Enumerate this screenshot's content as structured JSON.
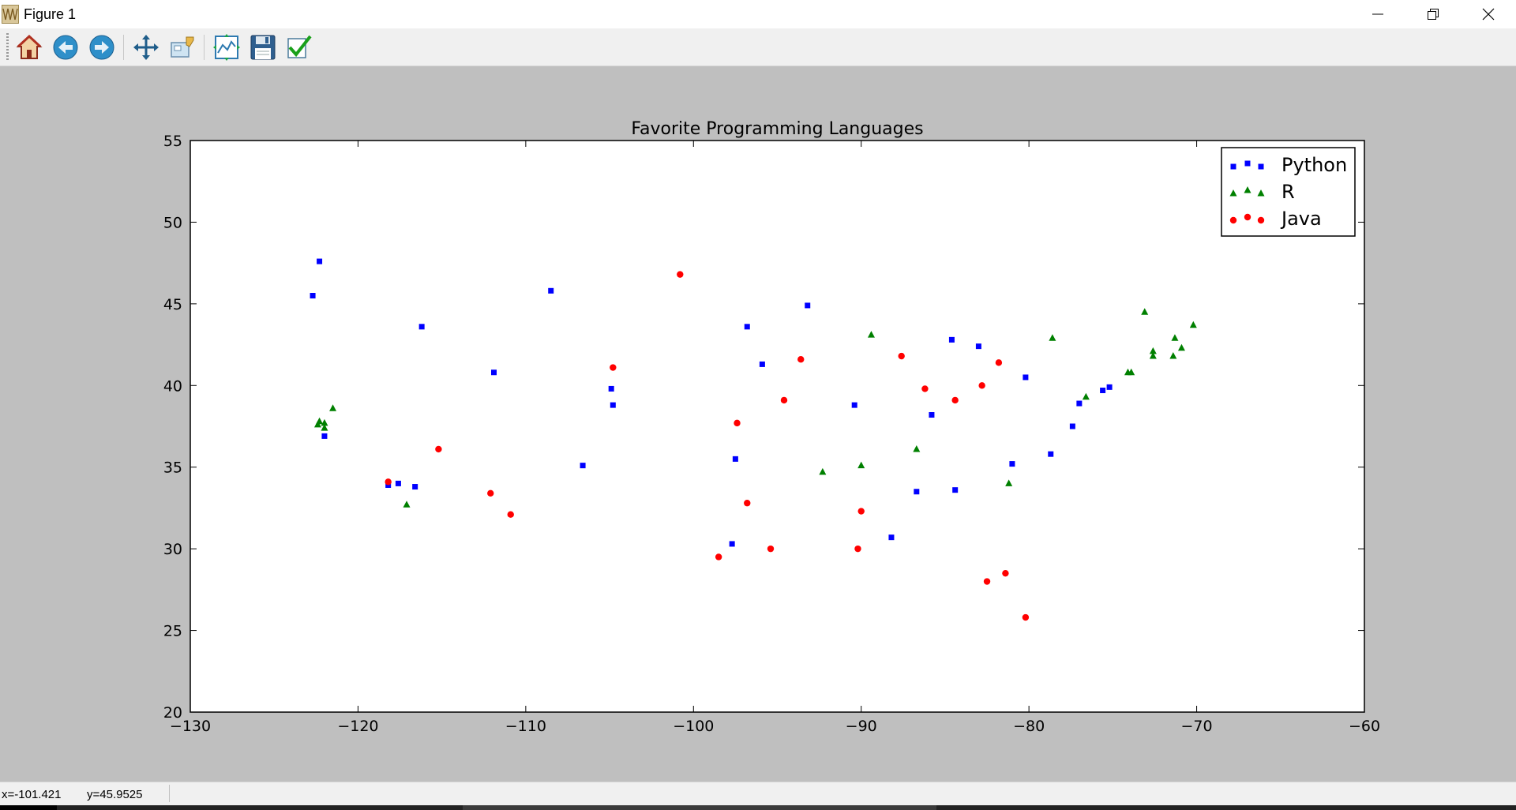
{
  "window": {
    "title": "Figure 1",
    "controls": {
      "minimize": "minimize",
      "maximize": "restore",
      "close": "close"
    }
  },
  "toolbar": {
    "buttons": [
      {
        "name": "home",
        "icon": "home-icon"
      },
      {
        "name": "back",
        "icon": "back-arrow-icon"
      },
      {
        "name": "forward",
        "icon": "forward-arrow-icon"
      },
      {
        "name": "pan",
        "icon": "pan-arrows-icon"
      },
      {
        "name": "zoom",
        "icon": "zoom-rect-icon"
      },
      {
        "name": "configure-subplots",
        "icon": "subplots-icon"
      },
      {
        "name": "save",
        "icon": "floppy-disk-icon"
      },
      {
        "name": "edit-axes",
        "icon": "checkmark-icon"
      }
    ]
  },
  "status": {
    "x": "x=-101.421",
    "y": "y=45.9525"
  },
  "colors": {
    "figure_bg": "#bfbfbf",
    "axes_bg": "#ffffff",
    "python": "#0000ff",
    "r": "#008000",
    "java": "#ff0000"
  },
  "chart_data": {
    "type": "scatter",
    "title": "Favorite Programming Languages",
    "xlabel": "",
    "ylabel": "",
    "xlim": [
      -130,
      -60
    ],
    "ylim": [
      20,
      55
    ],
    "xticks": [
      -130,
      -120,
      -110,
      -100,
      -90,
      -80,
      -70,
      -60
    ],
    "yticks": [
      20,
      25,
      30,
      35,
      40,
      45,
      50,
      55
    ],
    "xtick_labels": [
      "−130",
      "−120",
      "−110",
      "−100",
      "−90",
      "−80",
      "−70",
      "−60"
    ],
    "ytick_labels": [
      "20",
      "25",
      "30",
      "35",
      "40",
      "45",
      "50",
      "55"
    ],
    "grid": false,
    "legend": {
      "placement": "top-right",
      "entries": [
        "Python",
        "R",
        "Java"
      ]
    },
    "series": [
      {
        "name": "Python",
        "marker": "square",
        "color": "#0000ff",
        "x": [
          -122.7,
          -122.3,
          -122.0,
          -118.2,
          -117.6,
          -116.6,
          -116.2,
          -111.9,
          -108.5,
          -106.6,
          -104.9,
          -104.8,
          -97.7,
          -97.5,
          -96.8,
          -95.9,
          -93.2,
          -90.4,
          -88.2,
          -86.7,
          -85.8,
          -84.6,
          -84.4,
          -83.0,
          -81.0,
          -80.2,
          -78.7,
          -77.4,
          -77.0,
          -75.6,
          -75.2
        ],
        "y": [
          45.5,
          47.6,
          36.9,
          33.9,
          34.0,
          33.8,
          43.6,
          40.8,
          45.8,
          35.1,
          39.8,
          38.8,
          30.3,
          35.5,
          43.6,
          41.3,
          44.9,
          38.8,
          30.7,
          33.5,
          38.2,
          42.8,
          33.6,
          42.4,
          35.2,
          40.5,
          35.8,
          37.5,
          38.9,
          39.7,
          39.9
        ]
      },
      {
        "name": "R",
        "marker": "triangle",
        "color": "#008000",
        "x": [
          -122.4,
          -122.3,
          -122.0,
          -122.0,
          -121.5,
          -117.1,
          -92.3,
          -90.0,
          -89.4,
          -86.7,
          -81.2,
          -78.6,
          -76.6,
          -74.1,
          -73.9,
          -73.1,
          -72.6,
          -72.6,
          -71.4,
          -71.3,
          -70.9,
          -70.2
        ],
        "y": [
          37.6,
          37.8,
          37.4,
          37.7,
          38.6,
          32.7,
          34.7,
          35.1,
          43.1,
          36.1,
          34.0,
          42.9,
          39.3,
          40.8,
          40.8,
          44.5,
          41.8,
          42.1,
          41.8,
          42.9,
          42.3,
          43.7
        ]
      },
      {
        "name": "Java",
        "marker": "circle",
        "color": "#ff0000",
        "x": [
          -118.2,
          -115.2,
          -112.1,
          -110.9,
          -104.8,
          -100.8,
          -98.5,
          -97.4,
          -96.8,
          -95.4,
          -94.6,
          -93.6,
          -90.2,
          -90.0,
          -87.6,
          -86.2,
          -84.4,
          -82.8,
          -82.5,
          -81.8,
          -81.4,
          -80.2
        ],
        "y": [
          34.1,
          36.1,
          33.4,
          32.1,
          41.1,
          46.8,
          29.5,
          37.7,
          32.8,
          30.0,
          39.1,
          41.6,
          30.0,
          32.3,
          41.8,
          39.8,
          39.1,
          40.0,
          28.0,
          41.4,
          28.5,
          25.8
        ]
      }
    ]
  }
}
